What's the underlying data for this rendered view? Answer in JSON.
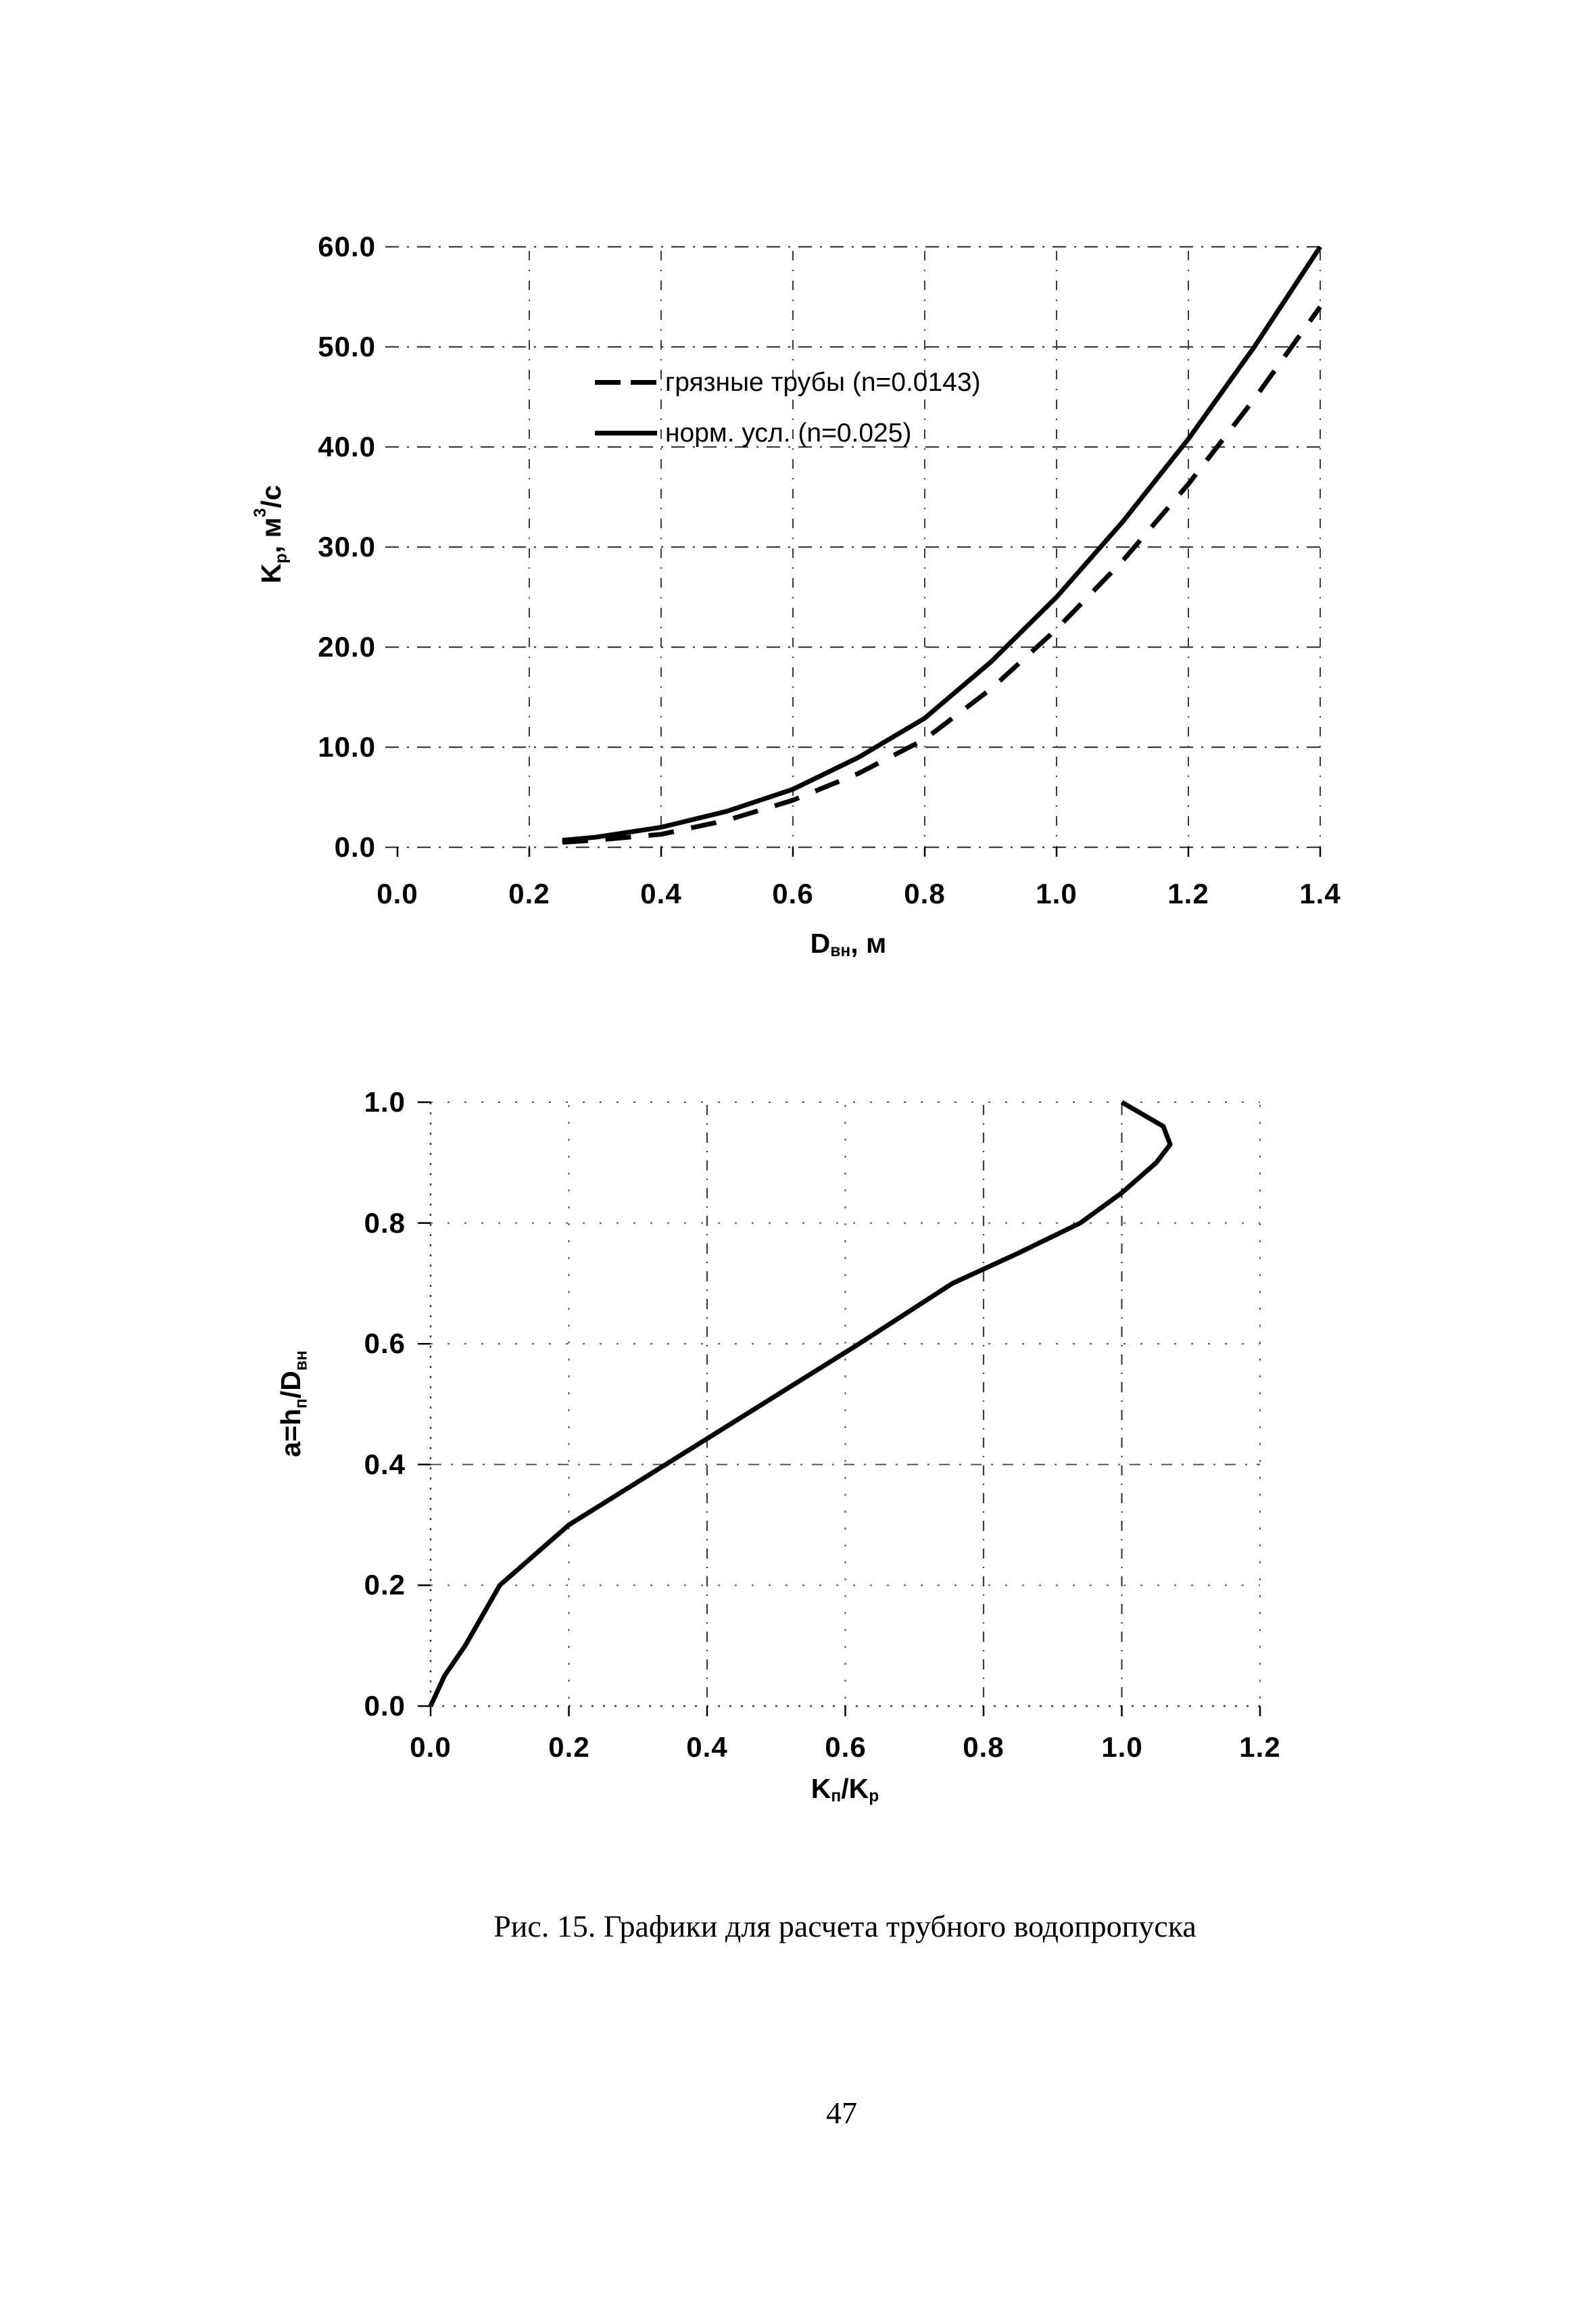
{
  "page": {
    "background": "#ffffff",
    "ink_color": "#000000",
    "grid_color": "#3c3c3c",
    "caption": "Рис. 15. Графики для расчета трубного водопропуска",
    "page_number": "47"
  },
  "chart1": {
    "y_axis": {
      "title_parts": {
        "p1": "K",
        "sub1": "р",
        "p2": ", м",
        "sup1": "3",
        "p3": "/с"
      }
    },
    "x_axis": {
      "title_parts": {
        "p1": "D",
        "sub1": "вн",
        "p2": ", м"
      }
    }
  },
  "chart2": {
    "y_axis": {
      "title_parts": {
        "p1": "a=h",
        "sub1": "п",
        "p2": "/D",
        "sub2": "вн"
      }
    },
    "x_axis": {
      "title_parts": {
        "p1": "K",
        "sub1": "п",
        "p2": "/K",
        "sub2": "р"
      }
    }
  },
  "chart_data": [
    {
      "type": "line",
      "title": "",
      "xlabel": "Dвн, м",
      "ylabel": "Kр, м³/с",
      "xlim": [
        0.0,
        1.4
      ],
      "ylim": [
        0.0,
        60.0
      ],
      "x_tick_labels": [
        "0.0",
        "0.2",
        "0.4",
        "0.6",
        "0.8",
        "1.0",
        "1.2",
        "1.4"
      ],
      "y_tick_labels": [
        "0.0",
        "10.0",
        "20.0",
        "30.0",
        "40.0",
        "50.0",
        "60.0"
      ],
      "grid": "dash-dot, both axes",
      "legend_position": "inside upper-left",
      "series": [
        {
          "name": "грязные трубы (n=0.0143)",
          "line": "dashed",
          "x": [
            0.25,
            0.3,
            0.4,
            0.5,
            0.6,
            0.7,
            0.8,
            0.9,
            1.0,
            1.1,
            1.2,
            1.3,
            1.4
          ],
          "y": [
            0.5,
            0.7,
            1.3,
            2.7,
            4.7,
            7.4,
            10.8,
            15.8,
            21.8,
            28.6,
            36.3,
            44.8,
            54.0
          ]
        },
        {
          "name": "норм. усл. (n=0.025)",
          "line": "solid",
          "x": [
            0.25,
            0.3,
            0.4,
            0.5,
            0.6,
            0.7,
            0.8,
            0.9,
            1.0,
            1.1,
            1.2,
            1.3,
            1.4
          ],
          "y": [
            0.7,
            1.0,
            2.0,
            3.6,
            5.8,
            9.0,
            12.9,
            18.5,
            25.0,
            32.5,
            40.8,
            50.0,
            60.0
          ]
        }
      ]
    },
    {
      "type": "line",
      "title": "",
      "xlabel": "Kп/Kр",
      "ylabel": "a=hп/Dвн",
      "xlim": [
        0.0,
        1.2
      ],
      "ylim": [
        0.0,
        1.0
      ],
      "x_tick_labels": [
        "0.0",
        "0.2",
        "0.4",
        "0.6",
        "0.8",
        "1.0",
        "1.2"
      ],
      "y_tick_labels": [
        "0.0",
        "0.2",
        "0.4",
        "0.6",
        "0.8",
        "1.0"
      ],
      "grid": "sparse dotted / dash-dot",
      "legend_position": "none",
      "series": [
        {
          "line": "solid",
          "x": [
            0.0,
            0.02,
            0.05,
            0.075,
            0.1,
            0.15,
            0.2,
            0.34,
            0.48,
            0.62,
            0.755,
            0.85,
            0.94,
            1.0,
            1.05,
            1.07,
            1.06,
            1.0
          ],
          "y": [
            0.0,
            0.05,
            0.1,
            0.15,
            0.2,
            0.25,
            0.3,
            0.4,
            0.5,
            0.6,
            0.7,
            0.75,
            0.8,
            0.85,
            0.9,
            0.93,
            0.96,
            1.0
          ]
        }
      ]
    }
  ]
}
